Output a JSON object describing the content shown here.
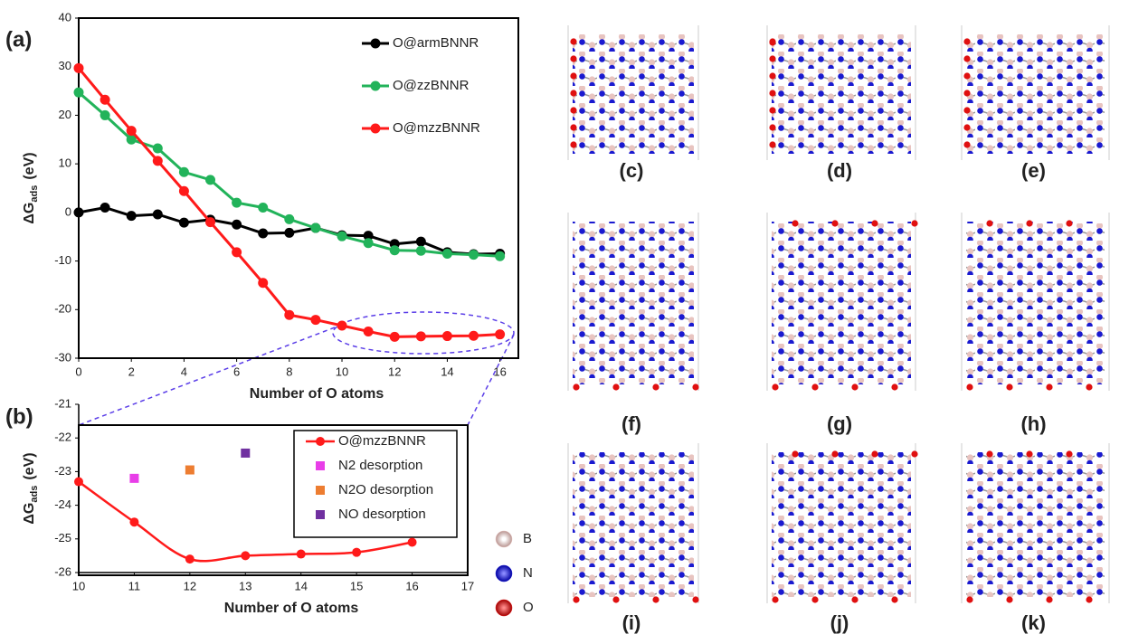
{
  "chart_data": [
    {
      "type": "line",
      "panel_label": "(a)",
      "xlabel": "Number of O atoms",
      "ylabel": "ΔG",
      "ylabel_sub": "ads",
      "ylabel_unit": "(eV)",
      "x": [
        0,
        1,
        2,
        3,
        4,
        5,
        6,
        7,
        8,
        9,
        10,
        11,
        12,
        13,
        14,
        15,
        16
      ],
      "xlim": [
        0,
        16.7
      ],
      "xticks": [
        0,
        2,
        4,
        6,
        8,
        10,
        12,
        14,
        16
      ],
      "ylim": [
        -30,
        40
      ],
      "yticks": [
        -30,
        -20,
        -10,
        0,
        10,
        20,
        30,
        40
      ],
      "legend": "upper right",
      "series": [
        {
          "name": "O@armBNNR",
          "color": "#000000",
          "values": [
            0,
            1,
            -0.7,
            -0.4,
            -2.1,
            -1.5,
            -2.5,
            -4.3,
            -4.2,
            -3.2,
            -4.7,
            -4.8,
            -6.5,
            -6,
            -8.2,
            -8.6,
            -8.5
          ]
        },
        {
          "name": "O@zzBNNR",
          "color": "#22b35a",
          "values": [
            24.7,
            20,
            15,
            13.2,
            8.3,
            6.7,
            2,
            1,
            -1.4,
            -3.2,
            -4.9,
            -6.3,
            -7.8,
            -7.9,
            -8.5,
            -8.7,
            -9
          ]
        },
        {
          "name": "O@mzzBNNR",
          "color": "#ff1a1a",
          "values": [
            29.7,
            23.2,
            16.8,
            10.6,
            4.4,
            -2,
            -8.2,
            -14.5,
            -21.1,
            -22.1,
            -23.3,
            -24.5,
            -25.6,
            -25.5,
            -25.45,
            -25.4,
            -25.1
          ]
        }
      ]
    },
    {
      "type": "line",
      "panel_label": "(b)",
      "xlabel": "Number of O atoms",
      "ylabel": "ΔG",
      "ylabel_sub": "ads",
      "ylabel_unit": "(eV)",
      "xlim": [
        10,
        17
      ],
      "xticks": [
        10,
        11,
        12,
        13,
        14,
        15,
        16,
        17
      ],
      "ylim": [
        -26,
        -21
      ],
      "yticks": [
        -26,
        -25,
        -24,
        -23,
        -22,
        -21
      ],
      "legend": "upper right",
      "series": [
        {
          "name": "O@mzzBNNR",
          "color": "#ff1a1a",
          "smooth": true,
          "marker": "circle",
          "x": [
            10,
            11,
            12,
            13,
            14,
            15,
            16
          ],
          "values": [
            -23.3,
            -24.5,
            -25.6,
            -25.5,
            -25.45,
            -25.4,
            -25.1
          ]
        },
        {
          "name": "N2 desorption",
          "color": "#e83ee8",
          "marker": "square",
          "line": false,
          "x": [
            11
          ],
          "values": [
            -23.2
          ]
        },
        {
          "name": "N2O desorption",
          "color": "#ed7d31",
          "marker": "square",
          "line": false,
          "x": [
            12
          ],
          "values": [
            -22.95
          ]
        },
        {
          "name": "NO desorption",
          "color": "#7030a0",
          "marker": "square",
          "line": false,
          "x": [
            13
          ],
          "values": [
            -22.45
          ]
        }
      ]
    }
  ],
  "structures": {
    "labels": [
      "(c)",
      "(d)",
      "(e)",
      "(f)",
      "(g)",
      "(h)",
      "(i)",
      "(j)",
      "(k)"
    ]
  },
  "atom_legend": [
    {
      "label": "B",
      "color": "#e8c4c0"
    },
    {
      "label": "N",
      "color": "#1a1ad0"
    },
    {
      "label": "O",
      "color": "#e01010"
    }
  ]
}
